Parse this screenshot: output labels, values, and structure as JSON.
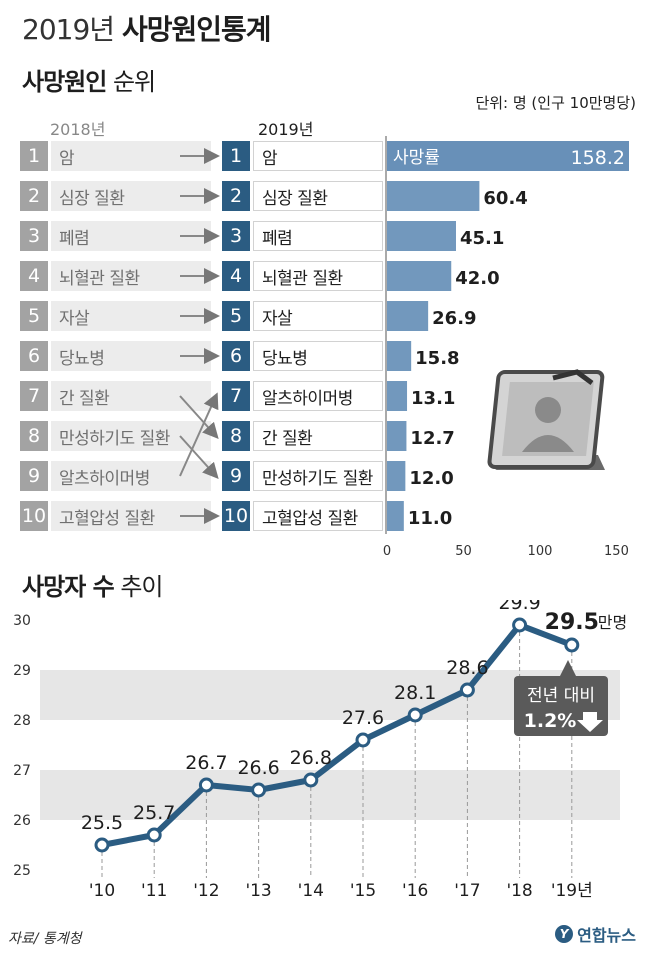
{
  "header": {
    "title_year": "2019년",
    "title_main": "사망원인통계"
  },
  "ranking": {
    "section_bold": "사망원인",
    "section_light": "순위",
    "unit": "단위: 명 (인구 10만명당)",
    "col_2018": "2018년",
    "col_2019": "2019년",
    "rank_numbers": [
      "1",
      "2",
      "3",
      "4",
      "5",
      "6",
      "7",
      "8",
      "9",
      "10"
    ],
    "causes_2018": [
      "암",
      "심장 질환",
      "폐렴",
      "뇌혈관 질환",
      "자살",
      "당뇨병",
      "간 질환",
      "만성하기도 질환",
      "알츠하이머병",
      "고혈압성 질환"
    ],
    "causes_2019": [
      "암",
      "심장 질환",
      "폐렴",
      "뇌혈관 질환",
      "자살",
      "당뇨병",
      "알츠하이머병",
      "간 질환",
      "만성하기도 질환",
      "고혈압성 질환"
    ]
  },
  "chart_data": [
    {
      "type": "bar",
      "orientation": "horizontal",
      "categories": [
        "암",
        "심장 질환",
        "폐렴",
        "뇌혈관 질환",
        "자살",
        "당뇨병",
        "알츠하이머병",
        "간 질환",
        "만성하기도 질환",
        "고혈압성 질환"
      ],
      "values": [
        158.2,
        60.4,
        45.1,
        42.0,
        26.9,
        15.8,
        13.1,
        12.7,
        12.0,
        11.0
      ],
      "value_labels": [
        "158.2",
        "60.4",
        "45.1",
        "42.0",
        "26.9",
        "15.8",
        "13.1",
        "12.7",
        "12.0",
        "11.0"
      ],
      "inbar_label": "사망률",
      "xlim": [
        0,
        158.2
      ],
      "xticks": [
        "0",
        "50",
        "100",
        "150"
      ],
      "xtick_values": [
        0,
        50,
        100,
        150
      ],
      "bar_color": "#7298bd",
      "top_bar_color": "#6890b8"
    },
    {
      "type": "line",
      "section_bold": "사망자 수",
      "section_light": "추이",
      "x": [
        "'10",
        "'11",
        "'12",
        "'13",
        "'14",
        "'15",
        "'16",
        "'17",
        "'18",
        "'19년"
      ],
      "values": [
        25.5,
        25.7,
        26.7,
        26.6,
        26.8,
        27.6,
        28.1,
        28.6,
        29.9,
        29.5
      ],
      "value_labels": [
        "25.5",
        "25.7",
        "26.7",
        "26.6",
        "26.8",
        "27.6",
        "28.1",
        "28.6",
        "29.9",
        "29.5"
      ],
      "last_unit": "만명",
      "ylim": [
        25,
        30
      ],
      "yticks": [
        "25",
        "26",
        "27",
        "28",
        "29",
        "30"
      ],
      "ytick_values": [
        25,
        26,
        27,
        28,
        29,
        30
      ],
      "line_color": "#2b5c82",
      "callout_line1": "전년 대비",
      "callout_line2": "1.2%",
      "grid": "horizontal-bands"
    }
  ],
  "footer": {
    "source": "자료/ 통계청",
    "logo_text": "연합뉴스",
    "logo_mark": "Y"
  }
}
